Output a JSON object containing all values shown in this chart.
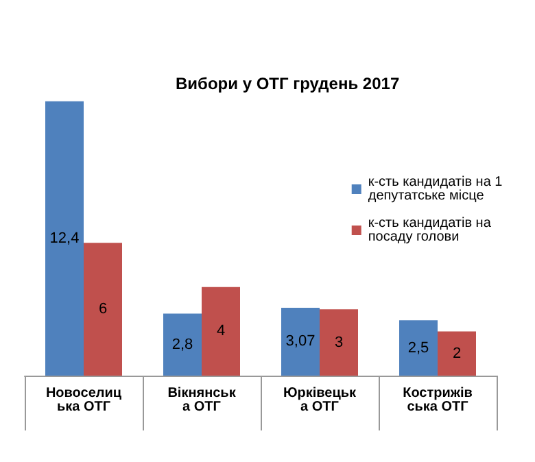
{
  "chart_data": {
    "type": "bar",
    "title": "Вибори у ОТГ грудень 2017",
    "categories": [
      "Новоселицька ОТГ",
      "Вікнянська ОТГ",
      "Юрківецька ОТГ",
      "Кострижівська ОТГ"
    ],
    "series": [
      {
        "name": "к-сть кандидатів на 1 депутатське місце",
        "color": "#4f81bd",
        "values": [
          12.4,
          2.8,
          3.07,
          2.5
        ],
        "value_labels": [
          "12,4",
          "2,8",
          "3,07",
          "2,5"
        ]
      },
      {
        "name": "к-сть кандидатів на посаду голови",
        "color": "#c0504d",
        "values": [
          6,
          4,
          3,
          2
        ],
        "value_labels": [
          "6",
          "4",
          "3",
          "2"
        ]
      }
    ],
    "legend": "top right",
    "grid": false
  }
}
